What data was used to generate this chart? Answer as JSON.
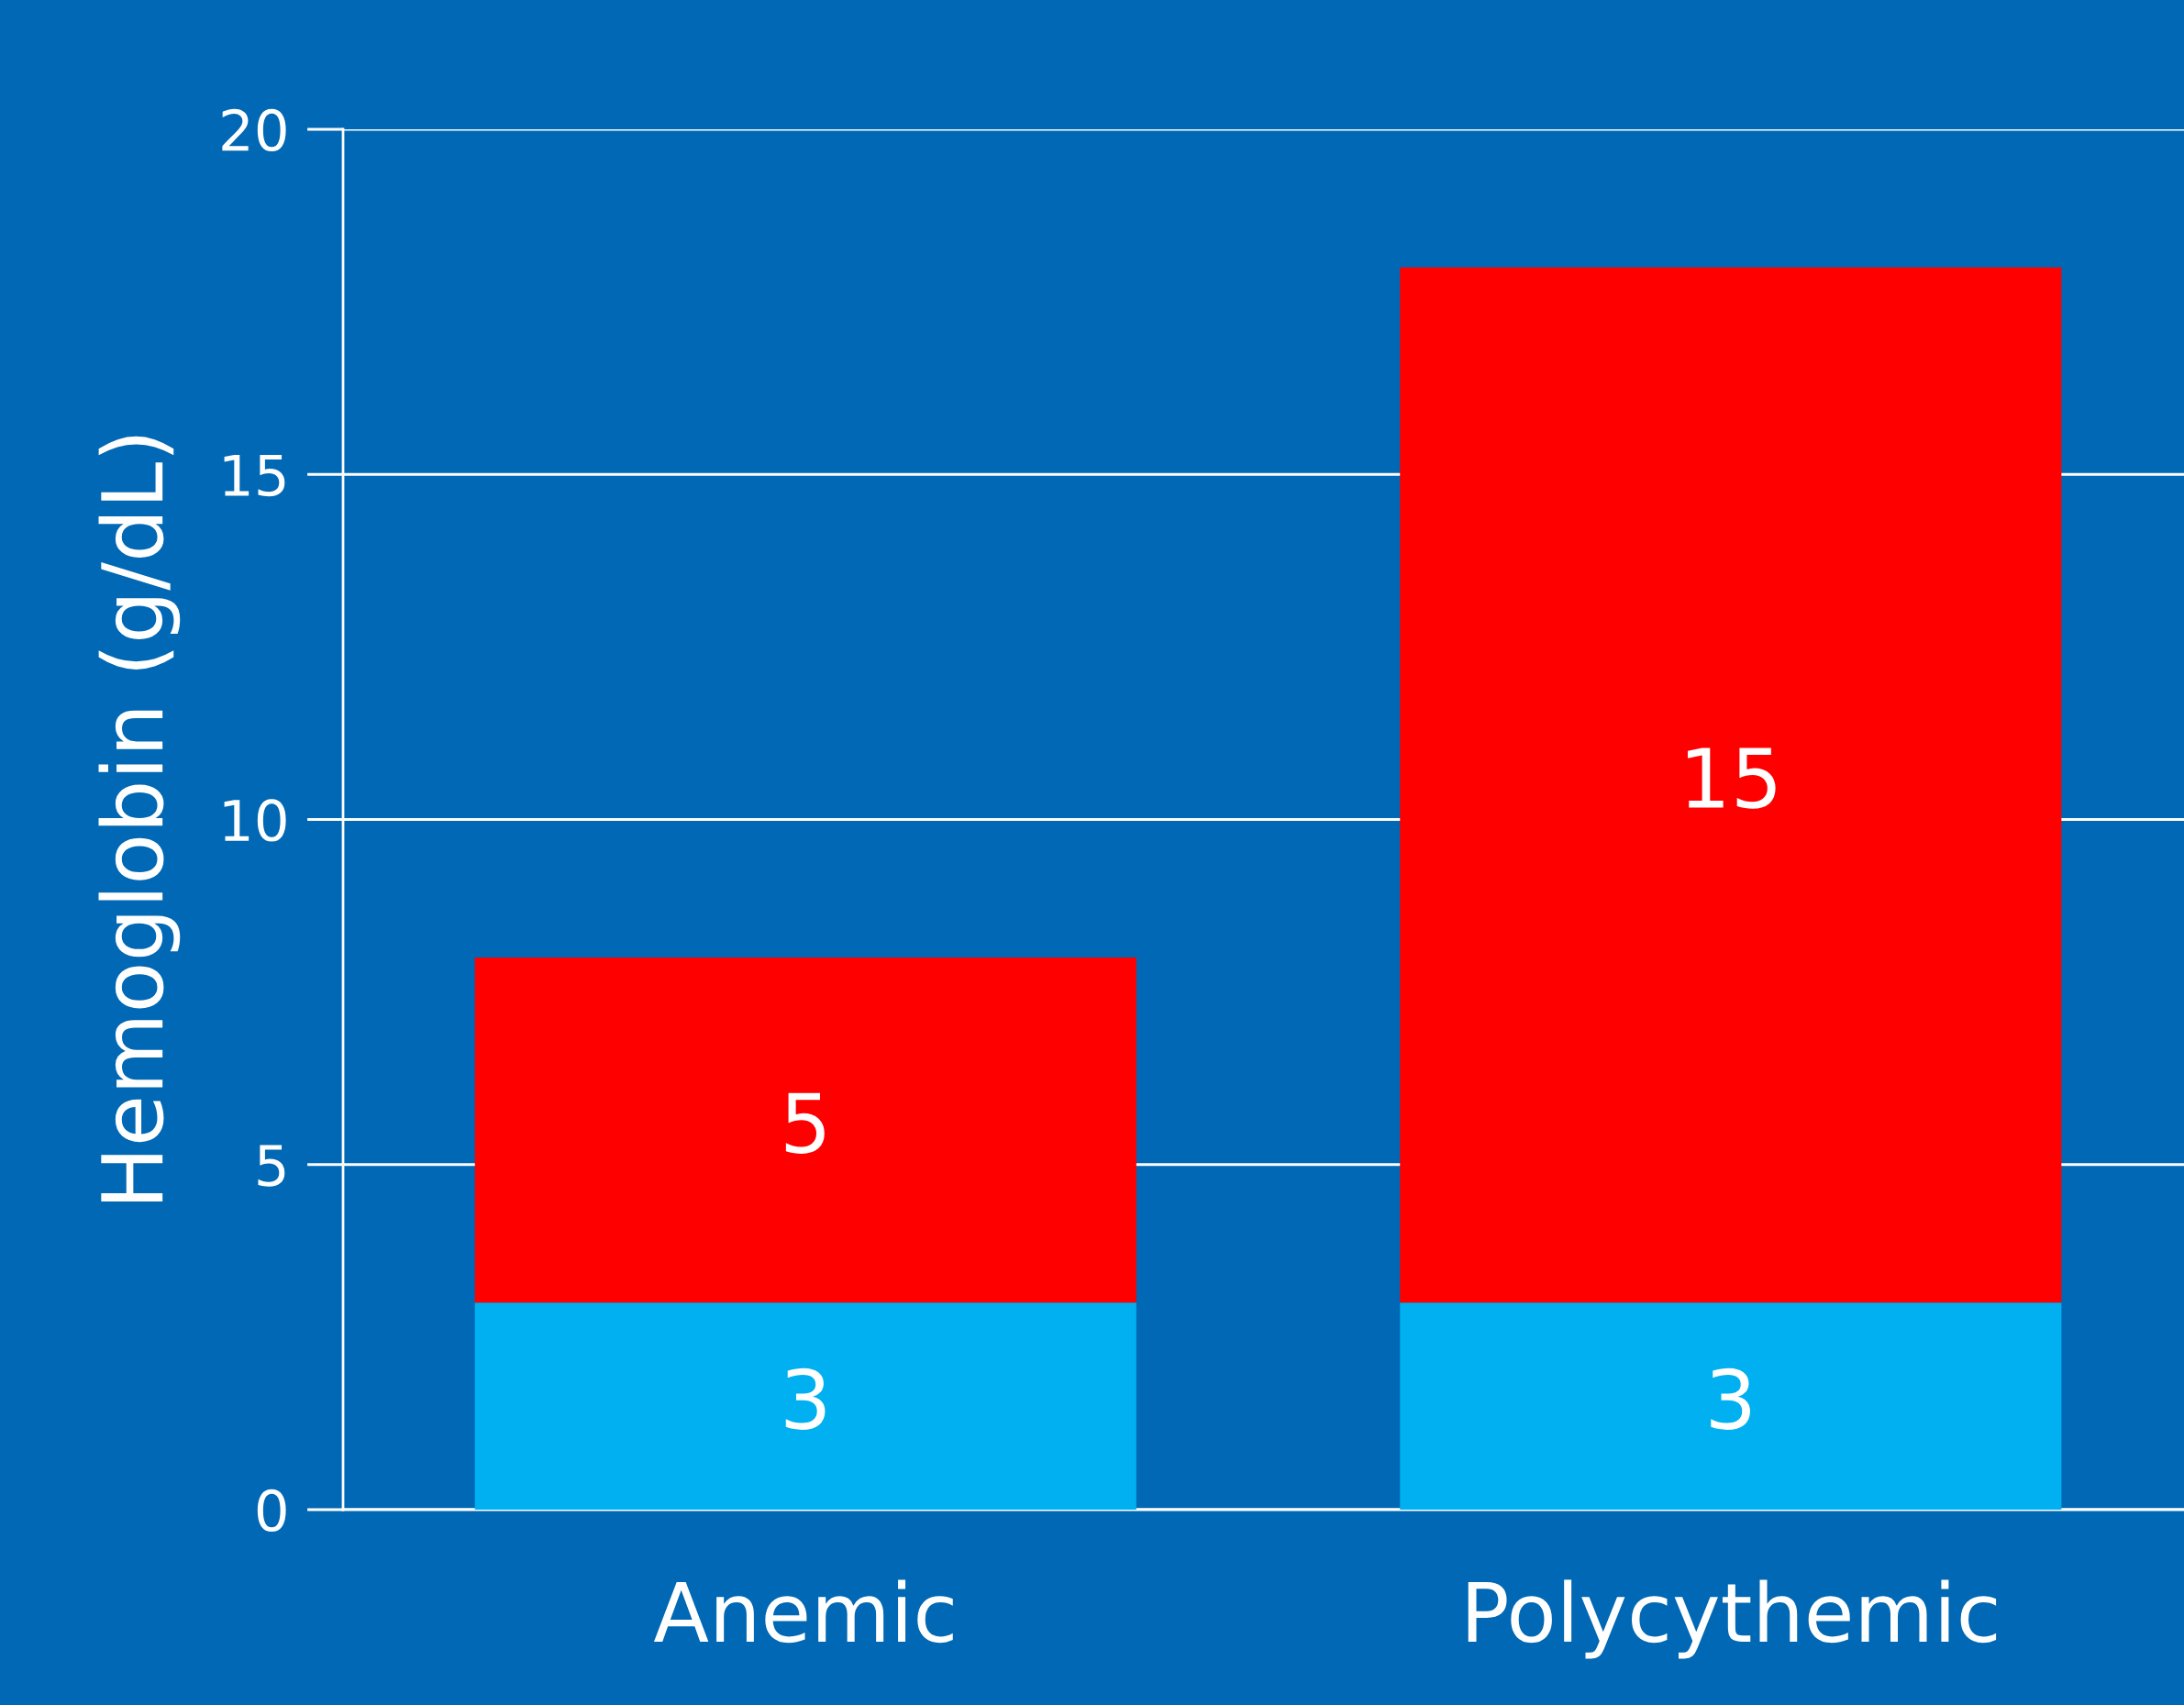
{
  "chart_data": {
    "type": "bar",
    "ylabel": "Hemoglobin (g/dL)",
    "categories": [
      "Anemic",
      "Polycythemic"
    ],
    "series": [
      {
        "color": "#00b0f0",
        "values": [
          3,
          3
        ]
      },
      {
        "color": "#ff0000",
        "values": [
          5,
          15
        ]
      }
    ],
    "stacked": true,
    "data_labels": true,
    "ylim": [
      0,
      20
    ],
    "yticks": [
      0,
      5,
      10,
      15,
      20
    ],
    "grid": "y",
    "legend": false
  }
}
